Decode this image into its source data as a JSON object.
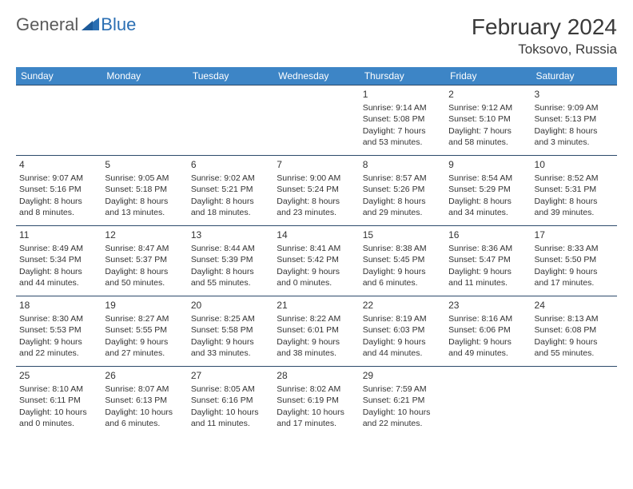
{
  "brand": {
    "part1": "General",
    "part2": "Blue"
  },
  "title": "February 2024",
  "location": "Toksovo, Russia",
  "colors": {
    "header_bg": "#3d85c6",
    "header_text": "#ffffff",
    "border": "#2c4a6b",
    "brand_gray": "#5a5a5a",
    "brand_blue": "#2b6fb3",
    "text": "#333333",
    "background": "#ffffff"
  },
  "typography": {
    "title_fontsize": 28,
    "location_fontsize": 17,
    "dayheader_fontsize": 12,
    "daynum_fontsize": 12,
    "cell_fontsize": 10.5
  },
  "day_headers": [
    "Sunday",
    "Monday",
    "Tuesday",
    "Wednesday",
    "Thursday",
    "Friday",
    "Saturday"
  ],
  "weeks": [
    [
      {
        "day": "",
        "sunrise": "",
        "sunset": "",
        "daylight1": "",
        "daylight2": ""
      },
      {
        "day": "",
        "sunrise": "",
        "sunset": "",
        "daylight1": "",
        "daylight2": ""
      },
      {
        "day": "",
        "sunrise": "",
        "sunset": "",
        "daylight1": "",
        "daylight2": ""
      },
      {
        "day": "",
        "sunrise": "",
        "sunset": "",
        "daylight1": "",
        "daylight2": ""
      },
      {
        "day": "1",
        "sunrise": "Sunrise: 9:14 AM",
        "sunset": "Sunset: 5:08 PM",
        "daylight1": "Daylight: 7 hours",
        "daylight2": "and 53 minutes."
      },
      {
        "day": "2",
        "sunrise": "Sunrise: 9:12 AM",
        "sunset": "Sunset: 5:10 PM",
        "daylight1": "Daylight: 7 hours",
        "daylight2": "and 58 minutes."
      },
      {
        "day": "3",
        "sunrise": "Sunrise: 9:09 AM",
        "sunset": "Sunset: 5:13 PM",
        "daylight1": "Daylight: 8 hours",
        "daylight2": "and 3 minutes."
      }
    ],
    [
      {
        "day": "4",
        "sunrise": "Sunrise: 9:07 AM",
        "sunset": "Sunset: 5:16 PM",
        "daylight1": "Daylight: 8 hours",
        "daylight2": "and 8 minutes."
      },
      {
        "day": "5",
        "sunrise": "Sunrise: 9:05 AM",
        "sunset": "Sunset: 5:18 PM",
        "daylight1": "Daylight: 8 hours",
        "daylight2": "and 13 minutes."
      },
      {
        "day": "6",
        "sunrise": "Sunrise: 9:02 AM",
        "sunset": "Sunset: 5:21 PM",
        "daylight1": "Daylight: 8 hours",
        "daylight2": "and 18 minutes."
      },
      {
        "day": "7",
        "sunrise": "Sunrise: 9:00 AM",
        "sunset": "Sunset: 5:24 PM",
        "daylight1": "Daylight: 8 hours",
        "daylight2": "and 23 minutes."
      },
      {
        "day": "8",
        "sunrise": "Sunrise: 8:57 AM",
        "sunset": "Sunset: 5:26 PM",
        "daylight1": "Daylight: 8 hours",
        "daylight2": "and 29 minutes."
      },
      {
        "day": "9",
        "sunrise": "Sunrise: 8:54 AM",
        "sunset": "Sunset: 5:29 PM",
        "daylight1": "Daylight: 8 hours",
        "daylight2": "and 34 minutes."
      },
      {
        "day": "10",
        "sunrise": "Sunrise: 8:52 AM",
        "sunset": "Sunset: 5:31 PM",
        "daylight1": "Daylight: 8 hours",
        "daylight2": "and 39 minutes."
      }
    ],
    [
      {
        "day": "11",
        "sunrise": "Sunrise: 8:49 AM",
        "sunset": "Sunset: 5:34 PM",
        "daylight1": "Daylight: 8 hours",
        "daylight2": "and 44 minutes."
      },
      {
        "day": "12",
        "sunrise": "Sunrise: 8:47 AM",
        "sunset": "Sunset: 5:37 PM",
        "daylight1": "Daylight: 8 hours",
        "daylight2": "and 50 minutes."
      },
      {
        "day": "13",
        "sunrise": "Sunrise: 8:44 AM",
        "sunset": "Sunset: 5:39 PM",
        "daylight1": "Daylight: 8 hours",
        "daylight2": "and 55 minutes."
      },
      {
        "day": "14",
        "sunrise": "Sunrise: 8:41 AM",
        "sunset": "Sunset: 5:42 PM",
        "daylight1": "Daylight: 9 hours",
        "daylight2": "and 0 minutes."
      },
      {
        "day": "15",
        "sunrise": "Sunrise: 8:38 AM",
        "sunset": "Sunset: 5:45 PM",
        "daylight1": "Daylight: 9 hours",
        "daylight2": "and 6 minutes."
      },
      {
        "day": "16",
        "sunrise": "Sunrise: 8:36 AM",
        "sunset": "Sunset: 5:47 PM",
        "daylight1": "Daylight: 9 hours",
        "daylight2": "and 11 minutes."
      },
      {
        "day": "17",
        "sunrise": "Sunrise: 8:33 AM",
        "sunset": "Sunset: 5:50 PM",
        "daylight1": "Daylight: 9 hours",
        "daylight2": "and 17 minutes."
      }
    ],
    [
      {
        "day": "18",
        "sunrise": "Sunrise: 8:30 AM",
        "sunset": "Sunset: 5:53 PM",
        "daylight1": "Daylight: 9 hours",
        "daylight2": "and 22 minutes."
      },
      {
        "day": "19",
        "sunrise": "Sunrise: 8:27 AM",
        "sunset": "Sunset: 5:55 PM",
        "daylight1": "Daylight: 9 hours",
        "daylight2": "and 27 minutes."
      },
      {
        "day": "20",
        "sunrise": "Sunrise: 8:25 AM",
        "sunset": "Sunset: 5:58 PM",
        "daylight1": "Daylight: 9 hours",
        "daylight2": "and 33 minutes."
      },
      {
        "day": "21",
        "sunrise": "Sunrise: 8:22 AM",
        "sunset": "Sunset: 6:01 PM",
        "daylight1": "Daylight: 9 hours",
        "daylight2": "and 38 minutes."
      },
      {
        "day": "22",
        "sunrise": "Sunrise: 8:19 AM",
        "sunset": "Sunset: 6:03 PM",
        "daylight1": "Daylight: 9 hours",
        "daylight2": "and 44 minutes."
      },
      {
        "day": "23",
        "sunrise": "Sunrise: 8:16 AM",
        "sunset": "Sunset: 6:06 PM",
        "daylight1": "Daylight: 9 hours",
        "daylight2": "and 49 minutes."
      },
      {
        "day": "24",
        "sunrise": "Sunrise: 8:13 AM",
        "sunset": "Sunset: 6:08 PM",
        "daylight1": "Daylight: 9 hours",
        "daylight2": "and 55 minutes."
      }
    ],
    [
      {
        "day": "25",
        "sunrise": "Sunrise: 8:10 AM",
        "sunset": "Sunset: 6:11 PM",
        "daylight1": "Daylight: 10 hours",
        "daylight2": "and 0 minutes."
      },
      {
        "day": "26",
        "sunrise": "Sunrise: 8:07 AM",
        "sunset": "Sunset: 6:13 PM",
        "daylight1": "Daylight: 10 hours",
        "daylight2": "and 6 minutes."
      },
      {
        "day": "27",
        "sunrise": "Sunrise: 8:05 AM",
        "sunset": "Sunset: 6:16 PM",
        "daylight1": "Daylight: 10 hours",
        "daylight2": "and 11 minutes."
      },
      {
        "day": "28",
        "sunrise": "Sunrise: 8:02 AM",
        "sunset": "Sunset: 6:19 PM",
        "daylight1": "Daylight: 10 hours",
        "daylight2": "and 17 minutes."
      },
      {
        "day": "29",
        "sunrise": "Sunrise: 7:59 AM",
        "sunset": "Sunset: 6:21 PM",
        "daylight1": "Daylight: 10 hours",
        "daylight2": "and 22 minutes."
      },
      {
        "day": "",
        "sunrise": "",
        "sunset": "",
        "daylight1": "",
        "daylight2": ""
      },
      {
        "day": "",
        "sunrise": "",
        "sunset": "",
        "daylight1": "",
        "daylight2": ""
      }
    ]
  ]
}
